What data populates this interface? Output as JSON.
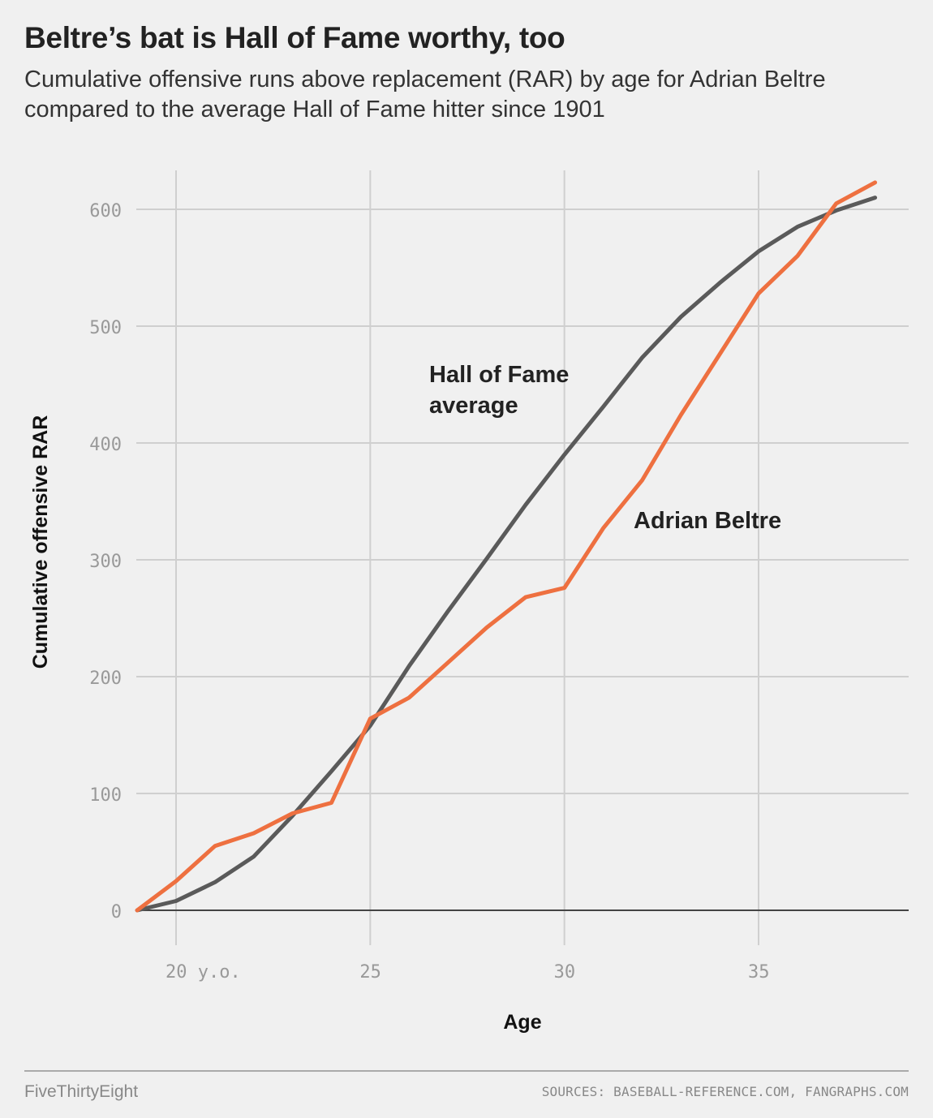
{
  "title": "Beltre’s bat is Hall of Fame worthy, too",
  "subtitle": "Cumulative offensive runs above replacement (RAR) by age for Adrian Beltre compared to the average Hall of Fame hitter since 1901",
  "footer": {
    "brand": "FiveThirtyEight",
    "sources": "SOURCES: BASEBALL-REFERENCE.COM, FANGRAPHS.COM"
  },
  "chart_data": {
    "type": "line",
    "xlabel": "Age",
    "ylabel": "Cumulative offensive RAR",
    "xlim": [
      19,
      39
    ],
    "ylim": [
      0,
      630
    ],
    "x_ticks": [
      {
        "value": 20,
        "label": "20 y.o."
      },
      {
        "value": 25,
        "label": "25"
      },
      {
        "value": 30,
        "label": "30"
      },
      {
        "value": 35,
        "label": "35"
      }
    ],
    "y_ticks": [
      {
        "value": 0,
        "label": "0"
      },
      {
        "value": 100,
        "label": "100"
      },
      {
        "value": 200,
        "label": "200"
      },
      {
        "value": 300,
        "label": "300"
      },
      {
        "value": 400,
        "label": "400"
      },
      {
        "value": 500,
        "label": "500"
      },
      {
        "value": 600,
        "label": "600"
      }
    ],
    "grid": true,
    "x": [
      19,
      20,
      21,
      22,
      23,
      24,
      25,
      26,
      27,
      28,
      29,
      30,
      31,
      32,
      33,
      34,
      35,
      36,
      37,
      38
    ],
    "series": [
      {
        "name": "Hall of Fame average",
        "color": "#5a5a5a",
        "values": [
          0,
          8,
          24,
          46,
          81,
          119,
          158,
          209,
          256,
          301,
          347,
          390,
          431,
          473,
          508,
          537,
          564,
          585,
          599,
          610
        ]
      },
      {
        "name": "Adrian Beltre",
        "color": "#ee7040",
        "values": [
          0,
          25,
          55,
          66,
          83,
          92,
          164,
          182,
          212,
          242,
          268,
          276,
          327,
          368,
          424,
          476,
          528,
          560,
          605,
          623
        ]
      }
    ]
  }
}
